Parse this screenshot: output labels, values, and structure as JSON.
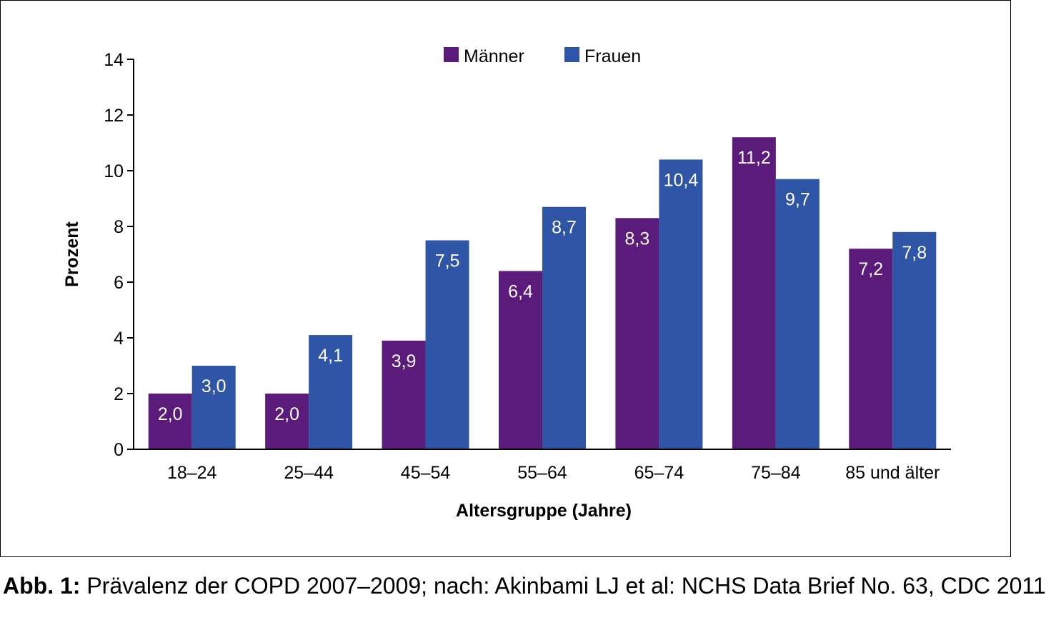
{
  "chart_data": {
    "type": "bar",
    "categories": [
      "18–24",
      "25–44",
      "45–54",
      "55–64",
      "65–74",
      "75–84",
      "85 und älter"
    ],
    "series": [
      {
        "name": "Männer",
        "values": [
          2.0,
          2.0,
          3.9,
          6.4,
          8.3,
          11.2,
          7.2
        ],
        "labels": [
          "2,0",
          "2,0",
          "3,9",
          "6,4",
          "8,3",
          "11,2",
          "7,2"
        ],
        "color": "#5b1b7a"
      },
      {
        "name": "Frauen",
        "values": [
          3.0,
          4.1,
          7.5,
          8.7,
          10.4,
          9.7,
          7.8
        ],
        "labels": [
          "3,0",
          "4,1",
          "7,5",
          "8,7",
          "10,4",
          "9,7",
          "7,8"
        ],
        "color": "#2f56a6"
      }
    ],
    "ylabel": "Prozent",
    "xlabel": "Altersgruppe (Jahre)",
    "ylim": [
      0,
      14
    ],
    "yticks": [
      0,
      2,
      4,
      6,
      8,
      10,
      12,
      14
    ],
    "legend_position": "top-center",
    "grid": false
  },
  "caption": {
    "lead": "Abb. 1:",
    "text": " Prävalenz der COPD 2007–2009; nach: Akinbami LJ et al: NCHS Data Brief No. 63, CDC 2011"
  }
}
